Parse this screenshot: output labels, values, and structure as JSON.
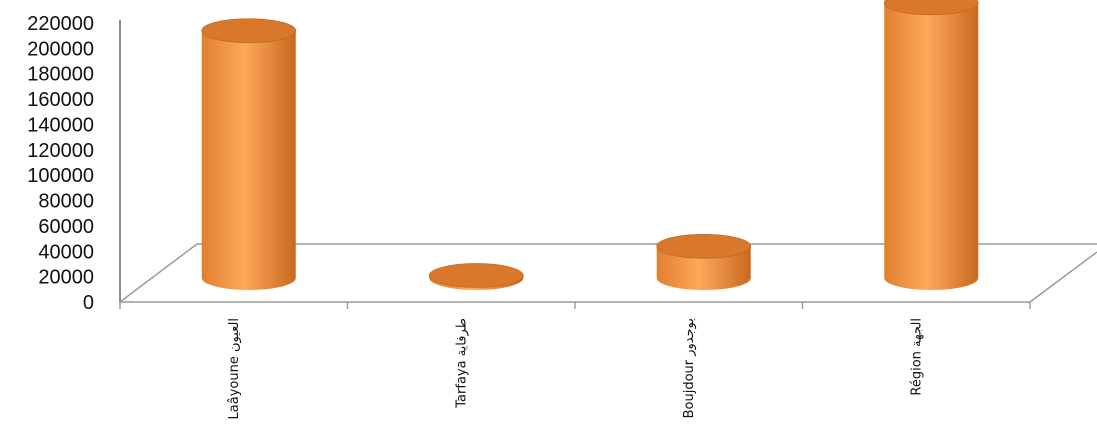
{
  "chart_data": {
    "type": "bar",
    "bar_style": "3d-cylinder",
    "categories": [
      "Laâyoune العيون",
      "Tarfaya طرفاية",
      "Boujdour بوجدور",
      "Région الجهة"
    ],
    "values": [
      195000,
      2000,
      25000,
      217000
    ],
    "ylim": [
      0,
      220000
    ],
    "yticks": [
      0,
      20000,
      40000,
      60000,
      80000,
      100000,
      120000,
      140000,
      160000,
      180000,
      200000,
      220000
    ],
    "grid": false,
    "legend": "none",
    "colors": {
      "bar_body": "#f29a45",
      "bar_body_dark": "#c8691f",
      "bar_top": "#d9782a",
      "floor_line": "#9a9a9a",
      "axis_line": "#666666"
    }
  }
}
